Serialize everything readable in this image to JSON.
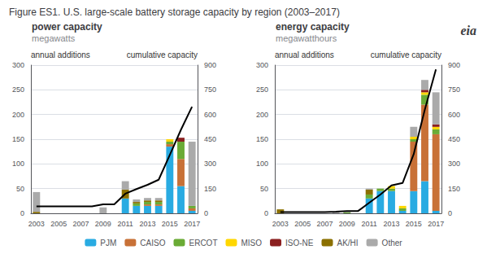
{
  "title": "Figure ES1. U.S. large-scale battery storage capacity by region (2003–2017)",
  "annotations": [
    "eia"
  ],
  "chart_data": [
    {
      "type": "bar",
      "title": "power capacity",
      "subtitle": "megawatts",
      "ylabel": "annual additions",
      "y2label": "cumulative capacity",
      "categories": [
        "2003",
        null,
        "2005",
        null,
        "2007",
        null,
        "2009",
        null,
        "2011",
        null,
        "2013",
        null,
        "2015",
        null,
        "2017"
      ],
      "stacked": true,
      "grid": true,
      "ylim": [
        0,
        300
      ],
      "yticks": [
        0,
        50,
        100,
        150,
        200,
        250,
        300
      ],
      "y2lim": [
        0,
        900
      ],
      "y2ticks": [
        0,
        150,
        300,
        450,
        600,
        750,
        900
      ],
      "series": [
        {
          "name": "PJM",
          "type": "bar",
          "color": "#29ABE2",
          "values": [
            0,
            0,
            0,
            0,
            0,
            0,
            0,
            0,
            30,
            15,
            15,
            15,
            135,
            55,
            5
          ]
        },
        {
          "name": "CAISO",
          "type": "bar",
          "color": "#C87137",
          "values": [
            0,
            0,
            0,
            0,
            0,
            0,
            0,
            0,
            0,
            0,
            3,
            3,
            5,
            55,
            5
          ]
        },
        {
          "name": "ERCOT",
          "type": "bar",
          "color": "#6AAB35",
          "values": [
            0,
            0,
            0,
            0,
            0,
            0,
            0,
            0,
            0,
            5,
            5,
            5,
            5,
            35,
            5
          ]
        },
        {
          "name": "MISO",
          "type": "bar",
          "color": "#FFD700",
          "values": [
            0,
            0,
            0,
            0,
            0,
            0,
            0,
            0,
            0,
            0,
            0,
            0,
            5,
            0,
            0
          ]
        },
        {
          "name": "ISO-NE",
          "type": "bar",
          "color": "#8B2020",
          "values": [
            0,
            0,
            0,
            0,
            0,
            0,
            0,
            0,
            0,
            0,
            0,
            0,
            0,
            8,
            0
          ]
        },
        {
          "name": "AK/HI",
          "type": "bar",
          "color": "#8B7000",
          "values": [
            3,
            0,
            0,
            0,
            0,
            0,
            0,
            0,
            18,
            3,
            3,
            3,
            0,
            0,
            0
          ]
        },
        {
          "name": "Other",
          "type": "bar",
          "color": "#AAAAAA",
          "values": [
            40,
            0,
            0,
            0,
            0,
            0,
            12,
            0,
            17,
            5,
            5,
            5,
            0,
            0,
            130
          ]
        },
        {
          "type": "line",
          "axis": "y2",
          "color": "#000000",
          "values": [
            42,
            42,
            42,
            42,
            42,
            42,
            54,
            54,
            119,
            147,
            173,
            204,
            354,
            507,
            647
          ]
        }
      ]
    },
    {
      "type": "bar",
      "title": "energy capacity",
      "subtitle": "megawatthours",
      "ylabel": "annual additions",
      "y2label": "cumulative capacity",
      "categories": [
        "2003",
        null,
        "2005",
        null,
        "2007",
        null,
        "2009",
        null,
        "2011",
        null,
        "2013",
        null,
        "2015",
        null,
        "2017"
      ],
      "stacked": true,
      "grid": true,
      "ylim": [
        0,
        300
      ],
      "yticks": [
        0,
        50,
        100,
        150,
        200,
        250,
        300
      ],
      "y2lim": [
        0,
        900
      ],
      "y2ticks": [
        0,
        150,
        300,
        450,
        600,
        750,
        900
      ],
      "series": [
        {
          "name": "PJM",
          "type": "bar",
          "color": "#29ABE2",
          "values": [
            0,
            0,
            0,
            0,
            0,
            0,
            0,
            0,
            30,
            45,
            45,
            5,
            45,
            65,
            5
          ]
        },
        {
          "name": "CAISO",
          "type": "bar",
          "color": "#C87137",
          "values": [
            0,
            0,
            0,
            0,
            0,
            0,
            0,
            0,
            0,
            0,
            0,
            0,
            100,
            155,
            155
          ]
        },
        {
          "name": "ERCOT",
          "type": "bar",
          "color": "#6AAB35",
          "values": [
            0,
            0,
            0,
            0,
            0,
            0,
            2,
            0,
            8,
            5,
            5,
            5,
            5,
            20,
            10
          ]
        },
        {
          "name": "MISO",
          "type": "bar",
          "color": "#FFD700",
          "values": [
            0,
            0,
            0,
            0,
            0,
            0,
            0,
            0,
            0,
            0,
            5,
            5,
            5,
            5,
            5
          ]
        },
        {
          "name": "ISO-NE",
          "type": "bar",
          "color": "#8B2020",
          "values": [
            0,
            0,
            0,
            0,
            0,
            0,
            0,
            0,
            0,
            0,
            0,
            0,
            0,
            5,
            5
          ]
        },
        {
          "name": "AK/HI",
          "type": "bar",
          "color": "#8B7000",
          "values": [
            8,
            0,
            0,
            0,
            0,
            0,
            0,
            0,
            10,
            0,
            0,
            0,
            0,
            0,
            0
          ]
        },
        {
          "name": "Other",
          "type": "bar",
          "color": "#AAAAAA",
          "values": [
            0,
            0,
            0,
            0,
            0,
            2,
            2,
            0,
            2,
            0,
            0,
            0,
            20,
            20,
            65
          ]
        },
        {
          "type": "line",
          "axis": "y2",
          "color": "#000000",
          "values": [
            8,
            8,
            8,
            8,
            8,
            10,
            14,
            14,
            64,
            114,
            169,
            184,
            359,
            629,
            874
          ]
        }
      ]
    }
  ]
}
